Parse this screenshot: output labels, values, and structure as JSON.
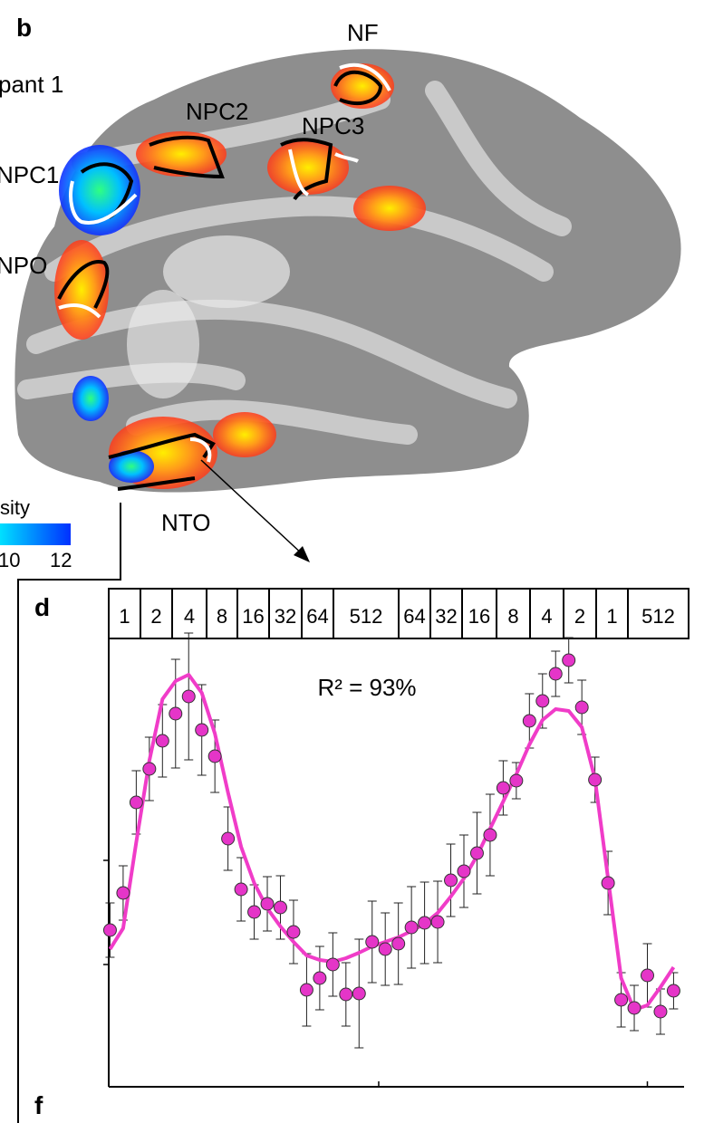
{
  "panel_b": {
    "label": "b",
    "participant": "pant 1",
    "regions": [
      "NF",
      "NPC2",
      "NPC3",
      "NPC1",
      "NPO",
      "NTO"
    ],
    "colorbar_label": "sity",
    "colorbar_ticks": [
      "10",
      "12"
    ]
  },
  "panel_d": {
    "label": "d",
    "header": [
      "1",
      "2",
      "4",
      "8",
      "16",
      "32",
      "64",
      "512",
      "64",
      "32",
      "16",
      "8",
      "4",
      "2",
      "1",
      "512"
    ],
    "chart_data": {
      "type": "scatter",
      "annotation": "R² = 93%",
      "x": [
        1,
        2,
        3,
        4,
        5,
        6,
        7,
        8,
        9,
        10,
        11,
        12,
        13,
        14,
        15,
        16,
        17,
        18,
        19,
        20,
        21,
        22,
        23,
        24,
        25,
        26,
        27,
        28,
        29,
        30,
        31,
        32,
        33,
        34,
        35,
        36,
        37,
        38,
        39,
        40,
        41,
        42,
        43,
        44
      ],
      "series": [
        {
          "color": "#e535c8",
          "values": [
            34.6,
            42.8,
            62.8,
            70.2,
            76.4,
            82.4,
            86.2,
            78.8,
            73,
            54.8,
            43.6,
            38.6,
            40.4,
            39.6,
            34.2,
            21.4,
            24,
            27,
            20.4,
            20.6,
            32,
            30.4,
            31.6,
            35.2,
            36.2,
            36.4,
            45.6,
            47.6,
            51.6,
            55.6,
            66,
            67.6,
            80.8,
            85.2,
            91.2,
            94.2,
            83.8,
            67.8,
            45,
            19.2,
            17.4,
            24.6,
            16.6,
            21.2
          ],
          "errors": [
            6,
            6,
            7,
            7,
            8,
            12,
            14,
            10,
            8,
            7,
            7,
            6,
            6,
            7,
            7,
            8,
            7,
            7,
            7,
            12,
            9,
            8,
            9,
            9,
            9,
            9,
            8,
            8,
            9,
            9,
            6,
            4,
            6,
            6,
            5,
            5,
            6,
            5,
            7,
            6,
            5,
            7,
            5,
            4
          ]
        },
        {
          "color": "#f03cc8",
          "values": [
            30.4,
            35,
            54,
            72,
            85.6,
            89.6,
            91,
            87,
            78,
            65,
            53,
            45,
            39.4,
            35.4,
            32,
            29,
            28,
            27.6,
            28.4,
            29.6,
            31,
            32,
            33,
            34.4,
            36,
            38.4,
            42,
            46,
            51,
            57,
            63,
            69,
            75.6,
            81,
            83.4,
            83,
            79.4,
            68,
            46,
            24,
            17,
            18,
            22,
            26.4
          ]
        }
      ],
      "xlim": [
        0.9,
        44.8
      ],
      "ylim": [
        0,
        100
      ],
      "xticks": [
        21.5,
        42
      ],
      "yticks": [
        27,
        50
      ]
    }
  },
  "panel_f": {
    "label": "f"
  }
}
